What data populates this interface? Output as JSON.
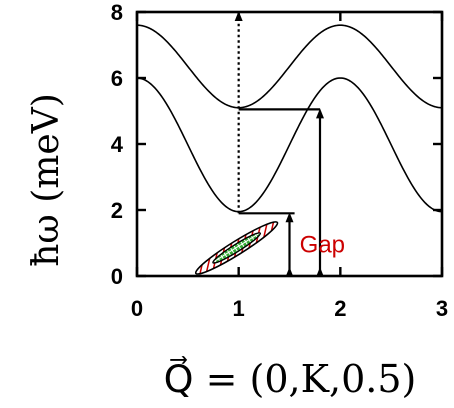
{
  "chart_data": {
    "type": "line",
    "title": "",
    "xlabel": "Q⃗ = (0,K,0.5)",
    "ylabel": "ħω (meV)",
    "xlim": [
      0,
      3
    ],
    "ylim": [
      0,
      8
    ],
    "xticks": [
      "0",
      "1",
      "2",
      "3"
    ],
    "yticks": [
      "0",
      "2",
      "4",
      "6",
      "8"
    ],
    "grid": false,
    "series": [
      {
        "name": "",
        "x": [
          0,
          0.25,
          0.5,
          0.75,
          1,
          1.25,
          1.5,
          1.75,
          2,
          2.25,
          2.5,
          2.75,
          3
        ],
        "y": [
          7.6,
          7.45,
          6.8,
          5.8,
          5.1,
          5.8,
          6.8,
          7.45,
          7.6,
          7.45,
          6.8,
          5.8,
          5.1
        ]
      },
      {
        "name": "",
        "x": [
          0,
          0.25,
          0.5,
          0.75,
          1,
          1.25,
          1.5,
          1.75,
          2,
          2.25,
          2.5,
          2.75,
          3
        ],
        "y": [
          6.0,
          5.6,
          4.6,
          3.1,
          1.95,
          3.1,
          4.6,
          5.6,
          6.0,
          5.6,
          4.6,
          3.1,
          1.95
        ]
      }
    ],
    "reference_lines": {
      "vertical_dotted_x": 1,
      "upper_level_y": 5.05,
      "upper_level_x_range": [
        1,
        1.8
      ],
      "lower_level_y": 1.9,
      "lower_level_x_range": [
        1,
        1.55
      ],
      "long_arrow": {
        "x": 1.8,
        "y_from": 0,
        "y_to": 5.05
      },
      "gap_arrow": {
        "x": 1.5,
        "y_from": 0,
        "y_to": 1.9
      }
    },
    "ellipse": {
      "cx": 0.98,
      "cy": 0.85,
      "half_width": 0.35,
      "half_height": 0.37,
      "tilt_deg": -32
    },
    "annotations": [
      {
        "text": "Gap",
        "x": 1.6,
        "y": 0.95,
        "color": "#cc0000"
      }
    ]
  }
}
